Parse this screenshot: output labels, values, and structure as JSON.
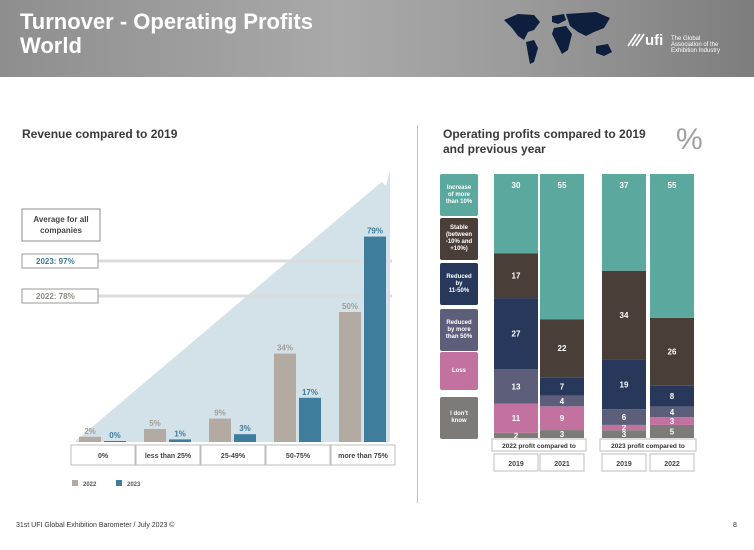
{
  "header": {
    "title_line1": "Turnover - Operating Profits",
    "title_line2": "World",
    "logo_text": "ufi",
    "logo_sub": [
      "The Global",
      "Association of the",
      "Exhibition Industry"
    ]
  },
  "colors": {
    "series_2022": "#b3aaa2",
    "series_2023": "#3e7d9c",
    "increase": "#5ba89e",
    "stable": "#4a3e38",
    "reduced_11_50": "#27385a",
    "reduced_more_50": "#5d5f7a",
    "loss": "#c3719e",
    "dont_know": "#7d7b77"
  },
  "left": {
    "title": "Revenue compared to 2019",
    "average_label": "Average for all companies",
    "avg_2023": "2023: 97%",
    "avg_2022": "2022: 78%",
    "legend": {
      "s2022": "2022",
      "s2023": "2023"
    }
  },
  "right": {
    "title_line1": "Operating profits compared to 2019",
    "title_line2": "and previous year",
    "pct": "%",
    "group1_label": "2022 profit compared to",
    "group2_label": "2023 profit compared to",
    "cat_labels": [
      [
        "Increase",
        "of more",
        "than 10%"
      ],
      [
        "Stable",
        "(between",
        "-10% and",
        "+10%)"
      ],
      [
        "Reduced",
        "by",
        "11-50%"
      ],
      [
        "Reduced",
        "by more",
        "than 50%"
      ],
      [
        "Loss"
      ],
      [
        "I don't",
        "know"
      ]
    ]
  },
  "footer": {
    "text": "31st UFI Global Exhibition Barometer / July 2023 ©",
    "page": "8"
  },
  "chart_data": [
    {
      "type": "bar",
      "title": "Revenue compared to 2019",
      "categories": [
        "0%",
        "less than 25%",
        "25-49%",
        "50-75%",
        "more than 75%"
      ],
      "series": [
        {
          "name": "2022",
          "values": [
            2,
            5,
            9,
            34,
            50
          ]
        },
        {
          "name": "2023",
          "values": [
            0,
            1,
            3,
            17,
            79
          ]
        }
      ],
      "value_labels": {
        "2022": [
          "2%",
          "5%",
          "9%",
          "34%",
          "50%"
        ],
        "2023": [
          "0%",
          "1%",
          "3%",
          "17%",
          "79%"
        ]
      },
      "ylim": [
        0,
        100
      ],
      "annotations": [
        "2023: 97%",
        "2022: 78%"
      ]
    },
    {
      "type": "bar",
      "stacked": true,
      "title": "Operating profits compared to 2019 and previous year",
      "groups": [
        "2022 profit compared to",
        "2023 profit compared to"
      ],
      "categories": [
        "2019",
        "2021",
        "2019",
        "2022"
      ],
      "series": [
        {
          "name": "Increase of more than 10%",
          "values": [
            30,
            55,
            37,
            55
          ]
        },
        {
          "name": "Stable (between -10% and +10%)",
          "values": [
            17,
            22,
            34,
            26
          ]
        },
        {
          "name": "Reduced by 11-50%",
          "values": [
            27,
            7,
            19,
            8
          ]
        },
        {
          "name": "Reduced by more than 50%",
          "values": [
            13,
            4,
            6,
            4
          ]
        },
        {
          "name": "Loss",
          "values": [
            11,
            9,
            2,
            3
          ]
        },
        {
          "name": "I don't know",
          "values": [
            2,
            3,
            3,
            5
          ]
        }
      ],
      "ylim": [
        0,
        100
      ]
    }
  ]
}
